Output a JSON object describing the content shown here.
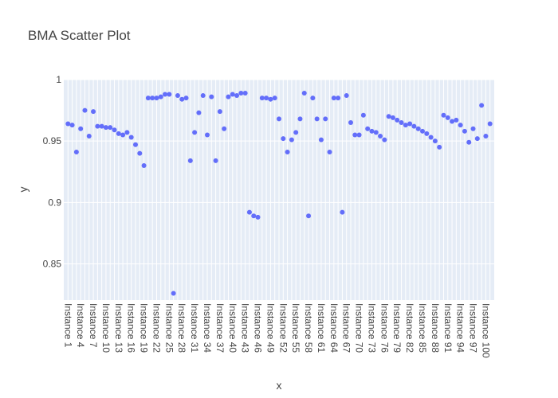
{
  "chart_data": {
    "type": "scatter",
    "title": "BMA Scatter Plot",
    "xlabel": "x",
    "ylabel": "y",
    "ylim": [
      0.8205,
      1.0
    ],
    "yticks": [
      0.85,
      0.9,
      0.95,
      1
    ],
    "ytick_labels": [
      "0.85",
      "0.9",
      "0.95",
      "1"
    ],
    "grid": true,
    "legend": "none",
    "marker_color": "#636efa",
    "plot_bg": "#e5ecf6",
    "x": [
      "Instance 1",
      "Instance 2",
      "Instance 3",
      "Instance 4",
      "Instance 5",
      "Instance 6",
      "Instance 7",
      "Instance 8",
      "Instance 9",
      "Instance 10",
      "Instance 11",
      "Instance 12",
      "Instance 13",
      "Instance 14",
      "Instance 15",
      "Instance 16",
      "Instance 17",
      "Instance 18",
      "Instance 19",
      "Instance 20",
      "Instance 21",
      "Instance 22",
      "Instance 23",
      "Instance 24",
      "Instance 25",
      "Instance 26",
      "Instance 27",
      "Instance 28",
      "Instance 29",
      "Instance 30",
      "Instance 31",
      "Instance 32",
      "Instance 33",
      "Instance 34",
      "Instance 35",
      "Instance 36",
      "Instance 37",
      "Instance 38",
      "Instance 39",
      "Instance 40",
      "Instance 41",
      "Instance 42",
      "Instance 43",
      "Instance 44",
      "Instance 45",
      "Instance 46",
      "Instance 47",
      "Instance 48",
      "Instance 49",
      "Instance 50",
      "Instance 51",
      "Instance 52",
      "Instance 53",
      "Instance 54",
      "Instance 55",
      "Instance 56",
      "Instance 57",
      "Instance 58",
      "Instance 59",
      "Instance 60",
      "Instance 61",
      "Instance 62",
      "Instance 63",
      "Instance 64",
      "Instance 65",
      "Instance 66",
      "Instance 67",
      "Instance 68",
      "Instance 69",
      "Instance 70",
      "Instance 71",
      "Instance 72",
      "Instance 73",
      "Instance 74",
      "Instance 75",
      "Instance 76",
      "Instance 77",
      "Instance 78",
      "Instance 79",
      "Instance 80",
      "Instance 81",
      "Instance 82",
      "Instance 83",
      "Instance 84",
      "Instance 85",
      "Instance 86",
      "Instance 87",
      "Instance 88",
      "Instance 89",
      "Instance 90",
      "Instance 91",
      "Instance 92",
      "Instance 93",
      "Instance 94",
      "Instance 95",
      "Instance 96",
      "Instance 97",
      "Instance 98",
      "Instance 99",
      "Instance 100",
      "Instance 101"
    ],
    "xtick_labels": [
      "Instance 1",
      "Instance 4",
      "Instance 7",
      "Instance 10",
      "Instance 13",
      "Instance 16",
      "Instance 19",
      "Instance 22",
      "Instance 25",
      "Instance 28",
      "Instance 31",
      "Instance 34",
      "Instance 37",
      "Instance 40",
      "Instance 43",
      "Instance 46",
      "Instance 49",
      "Instance 52",
      "Instance 55",
      "Instance 58",
      "Instance 61",
      "Instance 64",
      "Instance 67",
      "Instance 70",
      "Instance 73",
      "Instance 76",
      "Instance 79",
      "Instance 82",
      "Instance 85",
      "Instance 88",
      "Instance 91",
      "Instance 94",
      "Instance 97",
      "Instance 100"
    ],
    "y": [
      0.964,
      0.963,
      0.941,
      0.96,
      0.975,
      0.954,
      0.974,
      0.962,
      0.962,
      0.961,
      0.961,
      0.959,
      0.956,
      0.955,
      0.957,
      0.953,
      0.947,
      0.94,
      0.93,
      0.985,
      0.985,
      0.985,
      0.986,
      0.988,
      0.988,
      0.826,
      0.987,
      0.984,
      0.985,
      0.934,
      0.957,
      0.973,
      0.987,
      0.955,
      0.986,
      0.934,
      0.974,
      0.96,
      0.986,
      0.988,
      0.987,
      0.989,
      0.989,
      0.892,
      0.889,
      0.888,
      0.985,
      0.985,
      0.984,
      0.985,
      0.968,
      0.952,
      0.941,
      0.951,
      0.957,
      0.968,
      0.989,
      0.889,
      0.985,
      0.968,
      0.951,
      0.968,
      0.941,
      0.985,
      0.985,
      0.892,
      0.987,
      0.965,
      0.955,
      0.955,
      0.971,
      0.96,
      0.958,
      0.957,
      0.954,
      0.951,
      0.97,
      0.969,
      0.967,
      0.965,
      0.963,
      0.964,
      0.962,
      0.96,
      0.958,
      0.956,
      0.953,
      0.95,
      0.945,
      0.971,
      0.969,
      0.966,
      0.967,
      0.963,
      0.958,
      0.949,
      0.96,
      0.952,
      0.979,
      0.954,
      0.964
    ]
  }
}
